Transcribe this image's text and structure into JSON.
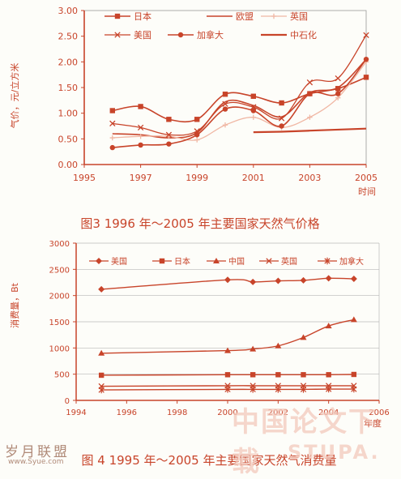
{
  "colors": {
    "red": "#c8442a",
    "pink": "#f0b7a4",
    "background": "#fdfdf9",
    "watermark": "#f7d9d0"
  },
  "chart_data": [
    {
      "type": "line",
      "caption": "图3  1996 年～2005 年主要国家天然气价格",
      "ylabel": "气价，元/立方米",
      "xlabel": "时间",
      "xlim": [
        1995,
        2005
      ],
      "ylim": [
        0,
        3.0
      ],
      "xticks": [
        "1995",
        "1997",
        "1999",
        "2001",
        "2003",
        "2005"
      ],
      "yticks": [
        "0.00",
        "0.50",
        "1.00",
        "1.50",
        "2.00",
        "2.50",
        "3.00"
      ],
      "legend_position": "top-inside",
      "grid": false,
      "series": [
        {
          "name": "日本",
          "marker": "square",
          "x": [
            1996,
            1997,
            1998,
            1999,
            2000,
            2001,
            2002,
            2003,
            2004,
            2005
          ],
          "values": [
            1.05,
            1.13,
            0.88,
            0.88,
            1.37,
            1.33,
            1.2,
            1.38,
            1.48,
            1.7
          ]
        },
        {
          "name": "欧盟",
          "marker": "none",
          "x": [
            1996,
            1997,
            1998,
            1999,
            2000,
            2001,
            2002,
            2003,
            2004,
            2005
          ],
          "values": [
            0.6,
            0.58,
            0.52,
            0.62,
            1.22,
            1.15,
            0.93,
            1.4,
            1.5,
            2.05
          ]
        },
        {
          "name": "英国",
          "marker": "cross",
          "x": [
            1996,
            1997,
            1998,
            1999,
            2000,
            2001,
            2002,
            2003,
            2004,
            2005
          ],
          "values": [
            0.52,
            0.55,
            0.55,
            0.48,
            0.77,
            0.92,
            0.72,
            0.92,
            1.3,
            2.0
          ]
        },
        {
          "name": "美国",
          "marker": "x",
          "x": [
            1996,
            1997,
            1998,
            1999,
            2000,
            2001,
            2002,
            2003,
            2004,
            2005
          ],
          "values": [
            0.8,
            0.72,
            0.58,
            0.65,
            1.18,
            1.12,
            0.9,
            1.6,
            1.68,
            2.52
          ]
        },
        {
          "name": "加拿大",
          "marker": "dot",
          "x": [
            1996,
            1997,
            1998,
            1999,
            2000,
            2001,
            2002,
            2003,
            2004,
            2005
          ],
          "values": [
            0.33,
            0.38,
            0.4,
            0.58,
            1.08,
            1.05,
            0.75,
            1.38,
            1.38,
            2.05
          ]
        },
        {
          "name": "中石化",
          "marker": "none",
          "x": [
            2001,
            2002,
            2003,
            2004,
            2005
          ],
          "values": [
            0.63,
            0.64,
            0.66,
            0.68,
            0.7
          ]
        }
      ]
    },
    {
      "type": "line",
      "caption": "图 4  1995 年～2005 年主要国家天然气消费量",
      "ylabel": "消费量，Bt",
      "xlabel": "年度",
      "xlim": [
        1994,
        2006
      ],
      "ylim": [
        0,
        3000
      ],
      "xticks": [
        "1994",
        "1996",
        "1998",
        "2000",
        "2002",
        "2004",
        "2006"
      ],
      "yticks": [
        "0",
        "500",
        "1000",
        "1500",
        "2000",
        "2500",
        "3000"
      ],
      "legend_position": "top-inside",
      "grid": true,
      "series": [
        {
          "name": "美国",
          "marker": "diamond",
          "x": [
            1995,
            2000,
            2001,
            2002,
            2003,
            2004,
            2005
          ],
          "values": [
            2120,
            2300,
            2260,
            2280,
            2290,
            2330,
            2320
          ]
        },
        {
          "name": "日本",
          "marker": "square",
          "x": [
            1995,
            2000,
            2001,
            2002,
            2003,
            2004,
            2005
          ],
          "values": [
            480,
            490,
            490,
            490,
            490,
            490,
            495
          ]
        },
        {
          "name": "中国",
          "marker": "triangle",
          "x": [
            1995,
            2000,
            2001,
            2002,
            2003,
            2004,
            2005
          ],
          "values": [
            900,
            950,
            980,
            1040,
            1200,
            1420,
            1540
          ]
        },
        {
          "name": "英国",
          "marker": "x",
          "x": [
            1995,
            2000,
            2001,
            2002,
            2003,
            2004,
            2005
          ],
          "values": [
            270,
            280,
            280,
            280,
            280,
            280,
            280
          ]
        },
        {
          "name": "加拿大",
          "marker": "star",
          "x": [
            1995,
            2000,
            2001,
            2002,
            2003,
            2004,
            2005
          ],
          "values": [
            200,
            210,
            210,
            210,
            210,
            215,
            215
          ]
        }
      ]
    }
  ],
  "watermarks": {
    "left_logo": "岁月联盟",
    "left_url": "www.Syue.com",
    "right_logo": "中国论文下载",
    "right_url": "STUPA."
  }
}
